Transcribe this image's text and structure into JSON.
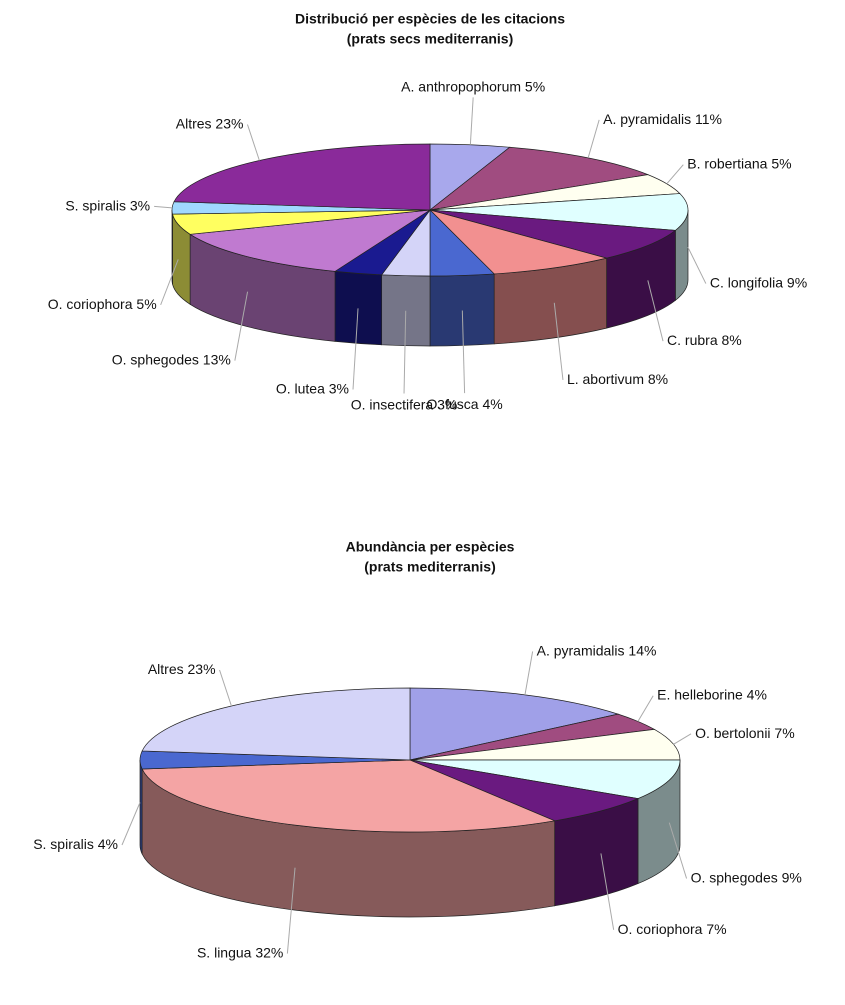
{
  "chart_data": [
    {
      "type": "pie3d",
      "title": "Distribució per espècies de les citacions",
      "subtitle": "(prats secs mediterranis)",
      "categories": [
        "A. anthropophorum",
        "A. pyramidalis",
        "B. robertiana",
        "C. longifolia",
        "C. rubra",
        "L. abortivum",
        "O. fusca",
        "O. insectifera",
        "O. lutea",
        "O. sphegodes",
        "O. coriophora",
        "S. spiralis",
        "Altres"
      ],
      "values": [
        5,
        11,
        5,
        9,
        8,
        8,
        4,
        3,
        3,
        13,
        5,
        3,
        23
      ],
      "value_labels": [
        "5%",
        "11%",
        "5%",
        "9%",
        "8%",
        "8%",
        "4%",
        "3%",
        "3%",
        "13%",
        "5%",
        "3%",
        "23%"
      ],
      "colors": [
        "#a8a8ec",
        "#a04c80",
        "#fffff0",
        "#e0ffff",
        "#6a1a80",
        "#f29090",
        "#4a68d0",
        "#d4d4f8",
        "#1a1a90",
        "#c07ad0",
        "#ffff60",
        "#a0d8ff",
        "#8a2a9a"
      ]
    },
    {
      "type": "pie3d",
      "title": "Abundància per espècies",
      "subtitle": "(prats mediterranis)",
      "categories": [
        "A. pyramidalis",
        "E. helleborine",
        "O. bertolonii",
        "O. sphegodes",
        "O. coriophora",
        "S. lingua",
        "S. spiralis",
        "Altres"
      ],
      "values": [
        14,
        4,
        7,
        9,
        7,
        32,
        4,
        23
      ],
      "value_labels": [
        "14%",
        "4%",
        "7%",
        "9%",
        "7%",
        "32%",
        "4%",
        "23%"
      ],
      "colors": [
        "#a0a0e8",
        "#a04c80",
        "#fffff0",
        "#e0ffff",
        "#6a1a80",
        "#f4a4a4",
        "#4a68d0",
        "#d4d4f8"
      ]
    }
  ]
}
